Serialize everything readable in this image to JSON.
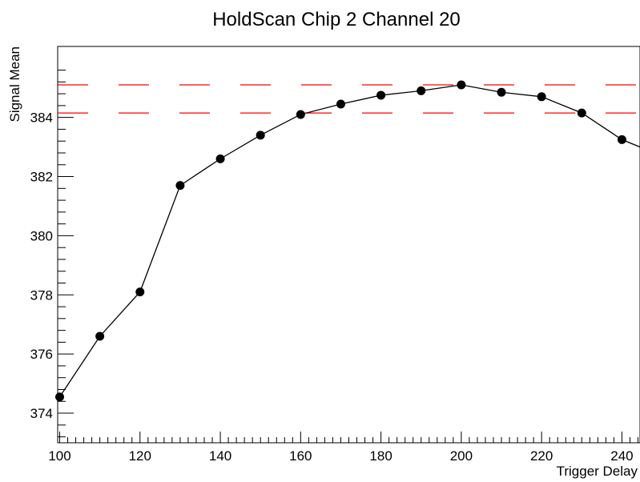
{
  "chart_data": {
    "type": "line",
    "title": "HoldScan Chip 2 Channel 20",
    "xlabel": "Trigger Delay",
    "ylabel": "Signal Mean",
    "xlim": [
      99.5,
      244.5
    ],
    "ylim": [
      373.0,
      386.4
    ],
    "x_ticks": [
      100,
      120,
      140,
      160,
      180,
      200,
      220,
      240
    ],
    "y_ticks": [
      374,
      376,
      378,
      380,
      382,
      384
    ],
    "grid": false,
    "series": [
      {
        "x": [
          100,
          110,
          120,
          130,
          140,
          150,
          160,
          170,
          180,
          190,
          200,
          210,
          220,
          230,
          240
        ],
        "values": [
          374.55,
          376.6,
          378.1,
          381.7,
          382.6,
          383.4,
          384.1,
          384.45,
          384.75,
          384.9,
          385.1,
          384.85,
          384.7,
          384.15,
          383.25
        ],
        "line_extends_to": {
          "x": 244.5,
          "y": 383.0
        },
        "line_color": "#000000",
        "marker": "filled-circle"
      }
    ],
    "reference_lines": [
      {
        "y": 385.1,
        "style": "dashed",
        "color": "#ff0000"
      },
      {
        "y": 384.15,
        "style": "dashed",
        "color": "#ff0000"
      }
    ]
  }
}
